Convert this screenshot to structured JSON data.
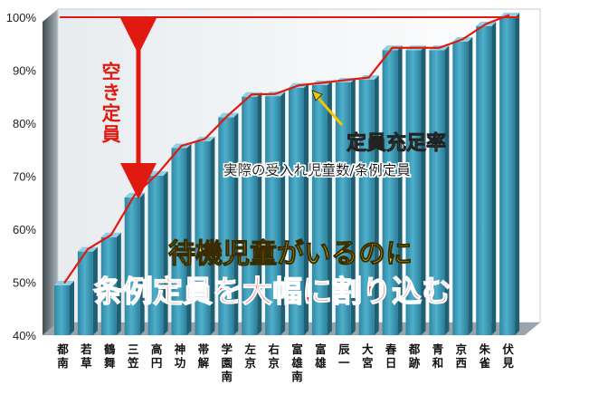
{
  "chart_data": {
    "type": "bar",
    "ylabel": "",
    "xlabel": "",
    "ylim": [
      40,
      100
    ],
    "yticks": [
      "40%",
      "50%",
      "60%",
      "70%",
      "80%",
      "90%",
      "100%"
    ],
    "grid": false,
    "categories": [
      "都南",
      "若草",
      "鶴舞",
      "三笠",
      "高円",
      "神功",
      "帯解",
      "学園南",
      "左京",
      "右京",
      "富雄南",
      "富雄",
      "辰一",
      "大宮",
      "春日",
      "都跡",
      "青和",
      "京西",
      "朱雀",
      "伏見"
    ],
    "series": [
      {
        "name": "実際の受入れ児童数/条例定員",
        "type": "bar",
        "values": [
          49.4,
          55.8,
          58.5,
          66.0,
          70.1,
          75.3,
          76.6,
          81.1,
          85.0,
          85.1,
          86.7,
          87.2,
          87.7,
          88.2,
          93.8,
          93.8,
          93.8,
          95.4,
          98.3,
          100.0
        ]
      },
      {
        "name": "定員充足率",
        "type": "line",
        "values": [
          49.4,
          55.8,
          58.5,
          66.0,
          70.1,
          75.3,
          76.6,
          81.1,
          85.0,
          85.1,
          86.7,
          87.2,
          87.7,
          88.2,
          93.8,
          93.8,
          93.8,
          95.4,
          98.3,
          100.0
        ]
      }
    ],
    "reference_line": 100,
    "annotations": {
      "vacancy_label": "空き定員",
      "rate_label": "定員充足率",
      "rate_sub": "実際の受入れ児童数/条例定員",
      "headline1": "待機児童がいるのに",
      "headline2": "条例定員を大幅に割り込む"
    },
    "colors": {
      "bar": "#3b9ab7",
      "bar_top": "#8fd0e3",
      "bar_side": "#1f5f74",
      "line": "#e01a10",
      "headline1": "#ffe600",
      "headline2": "#e01010",
      "rate_label": "#f5a800"
    }
  }
}
